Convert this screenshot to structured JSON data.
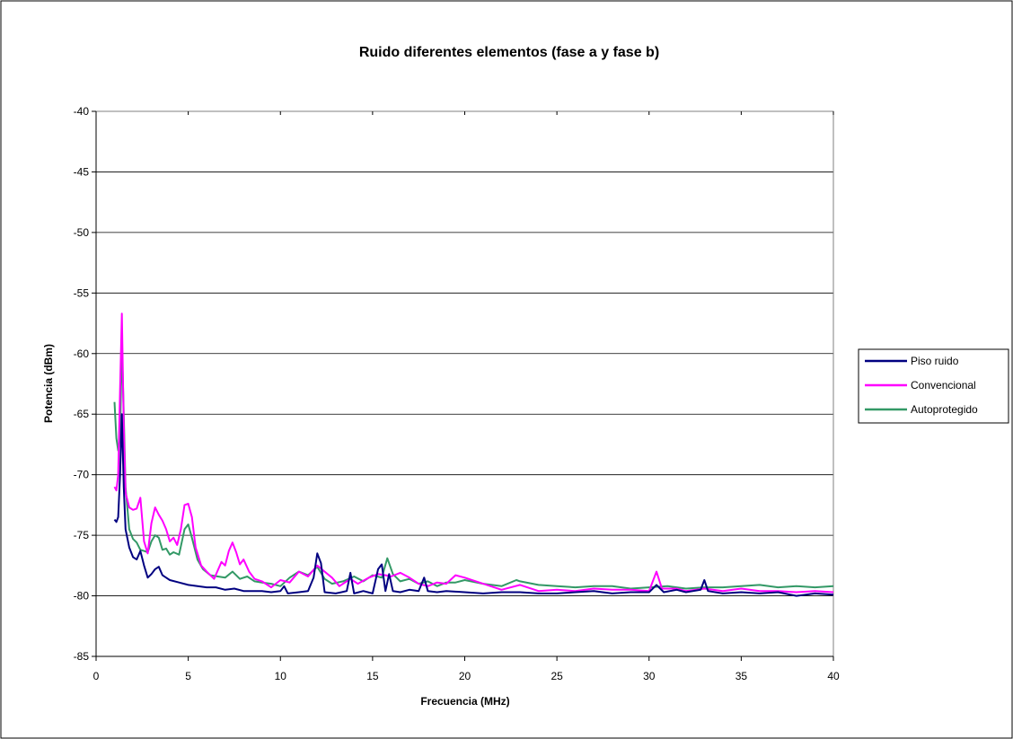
{
  "chart_data": {
    "type": "line",
    "title": "Ruido diferentes elementos (fase a y fase b)",
    "xlabel": "Frecuencia (MHz)",
    "ylabel": "Potencia (dBm)",
    "xlim": [
      0,
      40
    ],
    "ylim": [
      -85,
      -40
    ],
    "xticks": [
      0,
      5,
      10,
      15,
      20,
      25,
      30,
      35,
      40
    ],
    "yticks": [
      -40,
      -45,
      -50,
      -55,
      -60,
      -65,
      -70,
      -75,
      -80,
      -85
    ],
    "grid": "horizontal",
    "legend_position": "right",
    "series": [
      {
        "name": "Piso ruido",
        "color": "#000080",
        "points": [
          [
            1,
            -73.7
          ],
          [
            1.1,
            -73.9
          ],
          [
            1.2,
            -73.5
          ],
          [
            1.3,
            -70
          ],
          [
            1.4,
            -65
          ],
          [
            1.5,
            -71
          ],
          [
            1.6,
            -74.5
          ],
          [
            1.8,
            -76
          ],
          [
            2.0,
            -76.8
          ],
          [
            2.2,
            -77
          ],
          [
            2.4,
            -76.3
          ],
          [
            2.6,
            -77.5
          ],
          [
            2.8,
            -78.5
          ],
          [
            3.0,
            -78.2
          ],
          [
            3.2,
            -77.8
          ],
          [
            3.4,
            -77.6
          ],
          [
            3.6,
            -78.3
          ],
          [
            3.8,
            -78.5
          ],
          [
            4.0,
            -78.7
          ],
          [
            4.5,
            -78.9
          ],
          [
            5.0,
            -79.1
          ],
          [
            5.5,
            -79.2
          ],
          [
            6.0,
            -79.3
          ],
          [
            6.5,
            -79.3
          ],
          [
            7.0,
            -79.5
          ],
          [
            7.5,
            -79.4
          ],
          [
            8.0,
            -79.6
          ],
          [
            8.5,
            -79.6
          ],
          [
            9.0,
            -79.6
          ],
          [
            9.5,
            -79.7
          ],
          [
            10.0,
            -79.6
          ],
          [
            10.2,
            -79.2
          ],
          [
            10.4,
            -79.8
          ],
          [
            11.0,
            -79.7
          ],
          [
            11.5,
            -79.6
          ],
          [
            11.8,
            -78.5
          ],
          [
            12.0,
            -76.5
          ],
          [
            12.2,
            -77.3
          ],
          [
            12.4,
            -79.7
          ],
          [
            13.0,
            -79.8
          ],
          [
            13.6,
            -79.6
          ],
          [
            13.8,
            -78.1
          ],
          [
            14.0,
            -79.8
          ],
          [
            14.5,
            -79.6
          ],
          [
            15.0,
            -79.8
          ],
          [
            15.3,
            -77.8
          ],
          [
            15.5,
            -77.4
          ],
          [
            15.7,
            -79.6
          ],
          [
            15.9,
            -78.2
          ],
          [
            16.1,
            -79.6
          ],
          [
            16.5,
            -79.7
          ],
          [
            17.0,
            -79.5
          ],
          [
            17.5,
            -79.6
          ],
          [
            17.8,
            -78.5
          ],
          [
            18.0,
            -79.6
          ],
          [
            18.5,
            -79.7
          ],
          [
            19.0,
            -79.6
          ],
          [
            20.0,
            -79.7
          ],
          [
            21.0,
            -79.8
          ],
          [
            22.0,
            -79.7
          ],
          [
            23.0,
            -79.7
          ],
          [
            24.0,
            -79.8
          ],
          [
            25.0,
            -79.8
          ],
          [
            26.0,
            -79.7
          ],
          [
            27.0,
            -79.6
          ],
          [
            28.0,
            -79.8
          ],
          [
            29.0,
            -79.7
          ],
          [
            30.0,
            -79.7
          ],
          [
            30.4,
            -79.1
          ],
          [
            30.8,
            -79.7
          ],
          [
            31.5,
            -79.5
          ],
          [
            32.0,
            -79.7
          ],
          [
            32.8,
            -79.5
          ],
          [
            33.0,
            -78.7
          ],
          [
            33.2,
            -79.6
          ],
          [
            34.0,
            -79.8
          ],
          [
            35.0,
            -79.7
          ],
          [
            36.0,
            -79.8
          ],
          [
            37.0,
            -79.7
          ],
          [
            38.0,
            -80.0
          ],
          [
            39.0,
            -79.8
          ],
          [
            40.0,
            -79.9
          ]
        ]
      },
      {
        "name": "Convencional",
        "color": "#ff00ff",
        "points": [
          [
            1,
            -71
          ],
          [
            1.1,
            -71.3
          ],
          [
            1.2,
            -70
          ],
          [
            1.3,
            -63
          ],
          [
            1.4,
            -56.7
          ],
          [
            1.5,
            -66
          ],
          [
            1.6,
            -71.5
          ],
          [
            1.8,
            -72.7
          ],
          [
            2.0,
            -72.9
          ],
          [
            2.2,
            -72.8
          ],
          [
            2.4,
            -71.9
          ],
          [
            2.6,
            -75.5
          ],
          [
            2.8,
            -76.5
          ],
          [
            3.0,
            -74
          ],
          [
            3.2,
            -72.7
          ],
          [
            3.4,
            -73.3
          ],
          [
            3.6,
            -73.8
          ],
          [
            3.8,
            -74.5
          ],
          [
            4.0,
            -75.5
          ],
          [
            4.2,
            -75.2
          ],
          [
            4.4,
            -75.8
          ],
          [
            4.6,
            -74.5
          ],
          [
            4.8,
            -72.5
          ],
          [
            5.0,
            -72.4
          ],
          [
            5.2,
            -73.5
          ],
          [
            5.4,
            -76
          ],
          [
            5.7,
            -77.5
          ],
          [
            6.0,
            -78
          ],
          [
            6.4,
            -78.6
          ],
          [
            6.8,
            -77.2
          ],
          [
            7.0,
            -77.5
          ],
          [
            7.2,
            -76.3
          ],
          [
            7.4,
            -75.6
          ],
          [
            7.6,
            -76.4
          ],
          [
            7.8,
            -77.4
          ],
          [
            8.0,
            -77
          ],
          [
            8.3,
            -78
          ],
          [
            8.6,
            -78.6
          ],
          [
            9.0,
            -78.8
          ],
          [
            9.5,
            -79.3
          ],
          [
            10.0,
            -78.7
          ],
          [
            10.5,
            -78.9
          ],
          [
            11.0,
            -78
          ],
          [
            11.5,
            -78.4
          ],
          [
            12.0,
            -77.5
          ],
          [
            12.4,
            -78
          ],
          [
            12.8,
            -78.5
          ],
          [
            13.2,
            -79.2
          ],
          [
            13.8,
            -78.6
          ],
          [
            14.2,
            -79
          ],
          [
            14.8,
            -78.5
          ],
          [
            15.3,
            -78.2
          ],
          [
            15.7,
            -78.3
          ],
          [
            16.0,
            -78.4
          ],
          [
            16.5,
            -78.1
          ],
          [
            17.0,
            -78.5
          ],
          [
            17.5,
            -79
          ],
          [
            18.0,
            -79.2
          ],
          [
            18.5,
            -78.9
          ],
          [
            19.0,
            -79
          ],
          [
            19.5,
            -78.3
          ],
          [
            20.0,
            -78.5
          ],
          [
            21.0,
            -79
          ],
          [
            22.0,
            -79.5
          ],
          [
            23.0,
            -79.1
          ],
          [
            24.0,
            -79.6
          ],
          [
            25.0,
            -79.5
          ],
          [
            26.0,
            -79.6
          ],
          [
            27.0,
            -79.4
          ],
          [
            28.0,
            -79.5
          ],
          [
            29.0,
            -79.5
          ],
          [
            30.0,
            -79.6
          ],
          [
            30.4,
            -78
          ],
          [
            30.7,
            -79.4
          ],
          [
            31.5,
            -79.4
          ],
          [
            32.0,
            -79.6
          ],
          [
            33.0,
            -79.4
          ],
          [
            34.0,
            -79.6
          ],
          [
            35.0,
            -79.4
          ],
          [
            36.0,
            -79.6
          ],
          [
            37.0,
            -79.6
          ],
          [
            38.0,
            -79.7
          ],
          [
            39.0,
            -79.6
          ],
          [
            40.0,
            -79.7
          ]
        ]
      },
      {
        "name": "Autoprotegido",
        "color": "#339966",
        "points": [
          [
            1,
            -64
          ],
          [
            1.1,
            -67
          ],
          [
            1.2,
            -68
          ],
          [
            1.3,
            -67
          ],
          [
            1.4,
            -59
          ],
          [
            1.5,
            -65
          ],
          [
            1.6,
            -71
          ],
          [
            1.8,
            -74.5
          ],
          [
            2.0,
            -75.3
          ],
          [
            2.2,
            -75.6
          ],
          [
            2.4,
            -76.2
          ],
          [
            2.6,
            -76.3
          ],
          [
            2.8,
            -76.4
          ],
          [
            3.0,
            -75.5
          ],
          [
            3.2,
            -75
          ],
          [
            3.4,
            -75.2
          ],
          [
            3.6,
            -76.2
          ],
          [
            3.8,
            -76.1
          ],
          [
            4.0,
            -76.6
          ],
          [
            4.2,
            -76.4
          ],
          [
            4.5,
            -76.6
          ],
          [
            4.8,
            -74.5
          ],
          [
            5.0,
            -74.1
          ],
          [
            5.2,
            -75.2
          ],
          [
            5.5,
            -77
          ],
          [
            5.8,
            -77.8
          ],
          [
            6.2,
            -78.3
          ],
          [
            6.6,
            -78.4
          ],
          [
            7.0,
            -78.5
          ],
          [
            7.4,
            -78
          ],
          [
            7.8,
            -78.6
          ],
          [
            8.2,
            -78.4
          ],
          [
            8.6,
            -78.8
          ],
          [
            9.0,
            -78.9
          ],
          [
            9.5,
            -79
          ],
          [
            10.0,
            -79.2
          ],
          [
            10.5,
            -78.5
          ],
          [
            11.0,
            -78
          ],
          [
            11.5,
            -78.3
          ],
          [
            12.0,
            -77.6
          ],
          [
            12.4,
            -78.6
          ],
          [
            12.8,
            -79
          ],
          [
            13.4,
            -78.8
          ],
          [
            14.0,
            -78.4
          ],
          [
            14.5,
            -78.8
          ],
          [
            15.0,
            -78.3
          ],
          [
            15.5,
            -78.5
          ],
          [
            15.8,
            -76.9
          ],
          [
            16.1,
            -78.2
          ],
          [
            16.5,
            -78.8
          ],
          [
            17.0,
            -78.6
          ],
          [
            17.5,
            -79
          ],
          [
            18.0,
            -78.8
          ],
          [
            18.5,
            -79.2
          ],
          [
            19.0,
            -78.9
          ],
          [
            19.5,
            -78.9
          ],
          [
            20.0,
            -78.7
          ],
          [
            21.0,
            -79
          ],
          [
            22.0,
            -79.2
          ],
          [
            22.8,
            -78.7
          ],
          [
            23.0,
            -78.8
          ],
          [
            24.0,
            -79.1
          ],
          [
            25.0,
            -79.2
          ],
          [
            26.0,
            -79.3
          ],
          [
            27.0,
            -79.2
          ],
          [
            28.0,
            -79.2
          ],
          [
            29.0,
            -79.4
          ],
          [
            30.0,
            -79.3
          ],
          [
            31.0,
            -79.2
          ],
          [
            32.0,
            -79.4
          ],
          [
            33.0,
            -79.3
          ],
          [
            34.0,
            -79.3
          ],
          [
            35.0,
            -79.2
          ],
          [
            36.0,
            -79.1
          ],
          [
            37.0,
            -79.3
          ],
          [
            38.0,
            -79.2
          ],
          [
            39.0,
            -79.3
          ],
          [
            40.0,
            -79.2
          ]
        ]
      }
    ]
  }
}
